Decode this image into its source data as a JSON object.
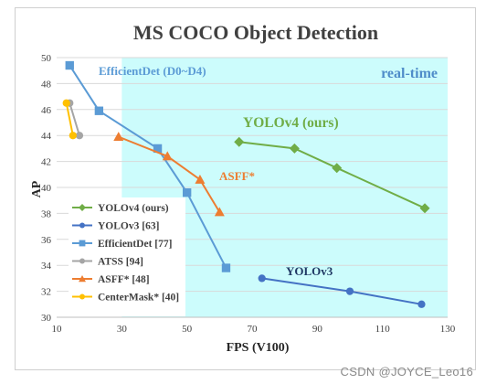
{
  "chart_data": {
    "type": "line",
    "title": "MS COCO Object Detection",
    "xlabel": "FPS (V100)",
    "ylabel": "AP",
    "xlim": [
      10,
      130
    ],
    "ylim": [
      30,
      50
    ],
    "xticks": [
      10,
      30,
      50,
      70,
      90,
      110,
      130
    ],
    "yticks": [
      30,
      32,
      34,
      36,
      38,
      40,
      42,
      44,
      46,
      48,
      50
    ],
    "grid": "horizontal",
    "legend_position": "bottom-left",
    "realtime_region": {
      "x_from": 30,
      "label": "real-time",
      "color": "#ccfcfc"
    },
    "series": [
      {
        "name": "YOLOv4 (ours)",
        "color": "#70ad47",
        "marker": "diamond",
        "x": [
          66,
          83,
          96,
          123
        ],
        "y": [
          43.5,
          43.0,
          41.5,
          38.4
        ],
        "annotation": "YOLOv4 (ours)"
      },
      {
        "name": "YOLOv3 [63]",
        "color": "#4472c4",
        "marker": "circle",
        "x": [
          73,
          100,
          122
        ],
        "y": [
          33.0,
          32.0,
          31.0
        ],
        "annotation": "YOLOv3"
      },
      {
        "name": "EfficientDet [77]",
        "color": "#5b9bd5",
        "marker": "square",
        "x": [
          14,
          23,
          41,
          50,
          62
        ],
        "y": [
          49.4,
          45.9,
          43.0,
          39.6,
          33.8
        ],
        "annotation": "EfficientDet (D0~D4)"
      },
      {
        "name": "ATSS [94]",
        "color": "#a5a5a5",
        "marker": "circle",
        "x": [
          14,
          17
        ],
        "y": [
          46.5,
          44.0
        ]
      },
      {
        "name": "ASFF* [48]",
        "color": "#ed7d31",
        "marker": "triangle",
        "x": [
          29,
          44,
          54,
          60
        ],
        "y": [
          43.9,
          42.4,
          40.6,
          38.1
        ],
        "annotation": "ASFF*"
      },
      {
        "name": "CenterMask* [40]",
        "color": "#ffc000",
        "marker": "circle",
        "x": [
          13,
          15
        ],
        "y": [
          46.5,
          44.0
        ]
      }
    ]
  },
  "watermark": "CSDN @JOYCE_Leo16"
}
